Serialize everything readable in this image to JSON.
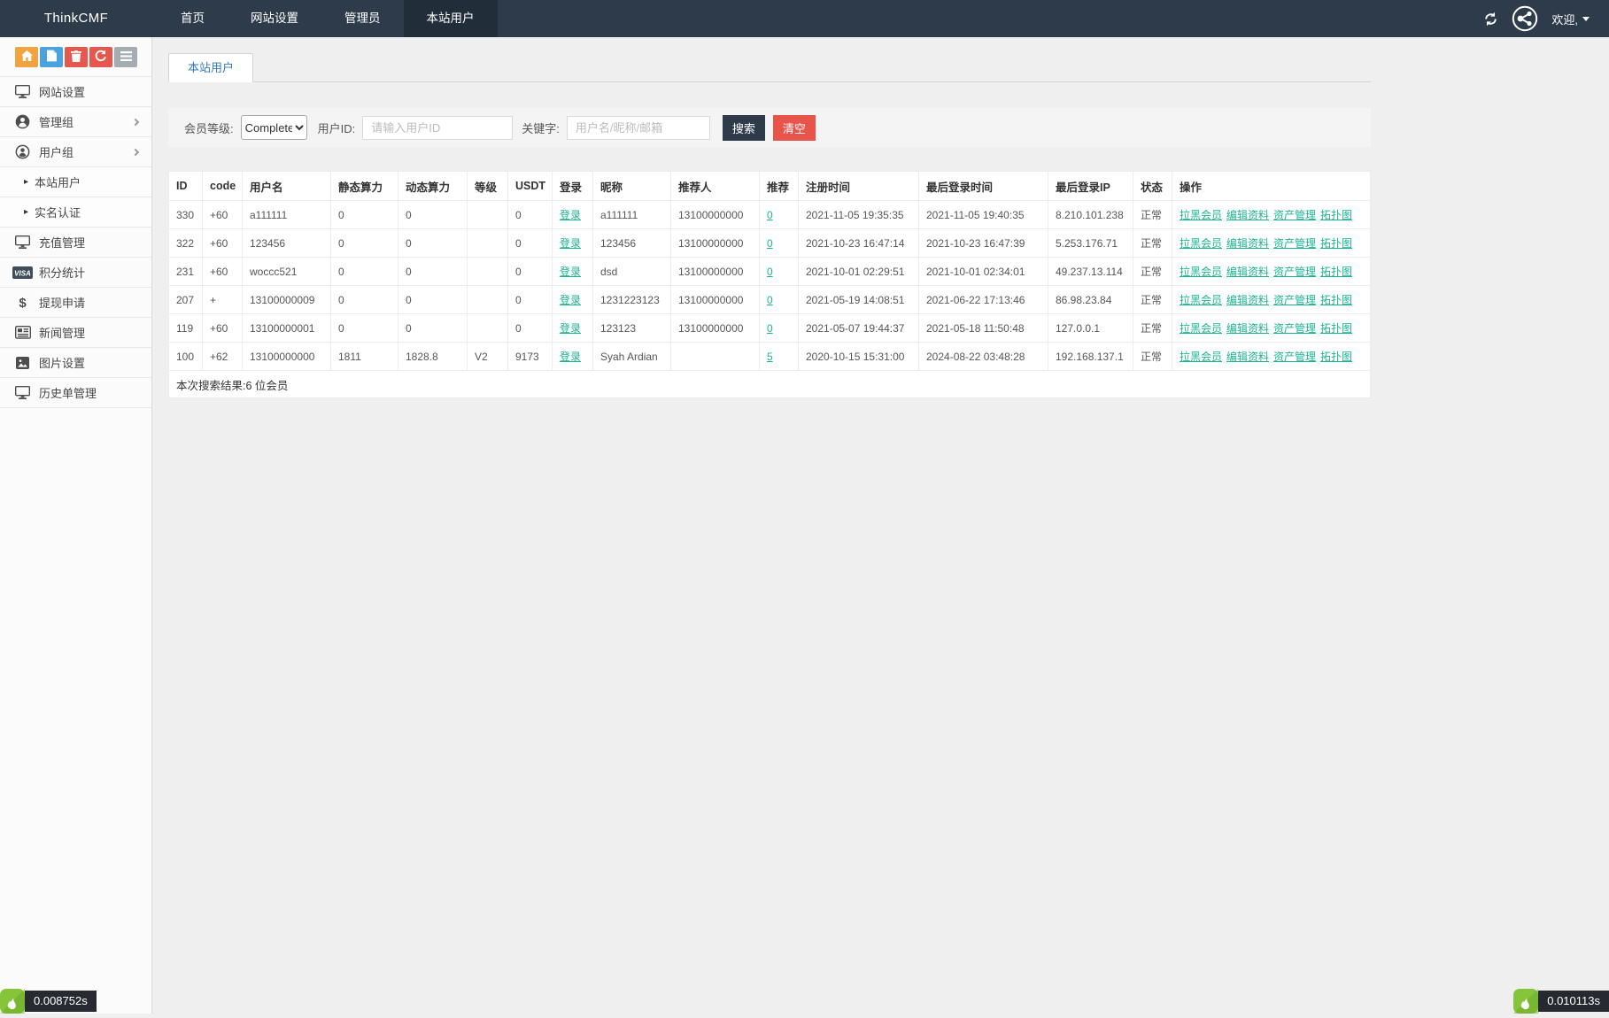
{
  "colors": {
    "navbar_bg": "#2e3b4b",
    "navbar_active_bg": "#222d3a",
    "link_green": "#1cb394",
    "danger_red": "#e8544a",
    "quick_orange": "#f0a33f",
    "quick_blue": "#4aa3df",
    "quick_gray": "#a4adb2",
    "logo_green": "#86c43a"
  },
  "navbar": {
    "brand": "ThinkCMF",
    "items": [
      {
        "key": "home",
        "label": "首页",
        "active": false
      },
      {
        "key": "site-settings",
        "label": "网站设置",
        "active": false
      },
      {
        "key": "admins",
        "label": "管理员",
        "active": false
      },
      {
        "key": "site-users",
        "label": "本站用户",
        "active": true
      }
    ],
    "welcome": "欢迎,"
  },
  "sidebar": {
    "quick_buttons": [
      {
        "key": "home",
        "icon": "home-icon",
        "color": "#f0a33f"
      },
      {
        "key": "file",
        "icon": "file-icon",
        "color": "#4aa3df"
      },
      {
        "key": "trash",
        "icon": "trash-icon",
        "color": "#e8574d"
      },
      {
        "key": "recycle",
        "icon": "recycle-icon",
        "color": "#e8574d"
      },
      {
        "key": "list",
        "icon": "list-icon",
        "color": "#a4adb2"
      }
    ],
    "menu": [
      {
        "key": "site-settings",
        "icon": "monitor-icon",
        "label": "网站设置",
        "expandable": false
      },
      {
        "key": "admin-group",
        "icon": "admin-group-icon",
        "label": "管理组",
        "expandable": true
      },
      {
        "key": "user-group",
        "icon": "user-group-icon",
        "label": "用户组",
        "expandable": true,
        "children": [
          {
            "key": "site-users",
            "label": "本站用户"
          },
          {
            "key": "realname-auth",
            "label": "实名认证"
          }
        ]
      },
      {
        "key": "recharge-manage",
        "icon": "monitor-icon",
        "label": "充值管理",
        "expandable": false
      },
      {
        "key": "points-stats",
        "icon": "visa-icon",
        "label": "积分统计",
        "expandable": false
      },
      {
        "key": "withdraw-apply",
        "icon": "dollar-icon",
        "label": "提现申请",
        "expandable": false
      },
      {
        "key": "news-manage",
        "icon": "news-icon",
        "label": "新闻管理",
        "expandable": false
      },
      {
        "key": "image-settings",
        "icon": "image-icon",
        "label": "图片设置",
        "expandable": false
      },
      {
        "key": "history-orders",
        "icon": "monitor-icon",
        "label": "历史单管理",
        "expandable": false
      }
    ]
  },
  "main": {
    "tab_label": "本站用户",
    "filter": {
      "level_label": "会员等级:",
      "level_value": "Complete",
      "userid_label": "用户ID:",
      "userid_placeholder": "请输入用户ID",
      "keyword_label": "关键字:",
      "keyword_placeholder": "用户名/昵称/邮箱",
      "search_button": "搜索",
      "clear_button": "清空"
    },
    "table": {
      "headers": [
        "ID",
        "code",
        "用户名",
        "静态算力",
        "动态算力",
        "等级",
        "USDT",
        "登录",
        "昵称",
        "推荐人",
        "推荐",
        "注册时间",
        "最后登录时间",
        "最后登录IP",
        "状态",
        "操作"
      ],
      "login_label": "登录",
      "actions": [
        "拉黑会员",
        "编辑资料",
        "资产管理",
        "拓扑图"
      ],
      "rows": [
        {
          "id": "330",
          "code": "+60",
          "username": "a111111",
          "static_power": "0",
          "dynamic_power": "0",
          "level": "",
          "usdt": "0",
          "nickname": "a111111",
          "referrer": "13100000000",
          "referrals": "0",
          "register_time": "2021-11-05 19:35:35",
          "last_login_time": "2021-11-05 19:40:35",
          "last_login_ip": "8.210.101.238",
          "status": "正常"
        },
        {
          "id": "322",
          "code": "+60",
          "username": "123456",
          "static_power": "0",
          "dynamic_power": "0",
          "level": "",
          "usdt": "0",
          "nickname": "123456",
          "referrer": "13100000000",
          "referrals": "0",
          "register_time": "2021-10-23 16:47:14",
          "last_login_time": "2021-10-23 16:47:39",
          "last_login_ip": "5.253.176.71",
          "status": "正常"
        },
        {
          "id": "231",
          "code": "+60",
          "username": "woccc521",
          "static_power": "0",
          "dynamic_power": "0",
          "level": "",
          "usdt": "0",
          "nickname": "dsd",
          "referrer": "13100000000",
          "referrals": "0",
          "register_time": "2021-10-01 02:29:51",
          "last_login_time": "2021-10-01 02:34:01",
          "last_login_ip": "49.237.13.114",
          "status": "正常"
        },
        {
          "id": "207",
          "code": "+",
          "username": "13100000009",
          "static_power": "0",
          "dynamic_power": "0",
          "level": "",
          "usdt": "0",
          "nickname": "1231223123",
          "referrer": "13100000000",
          "referrals": "0",
          "register_time": "2021-05-19 14:08:51",
          "last_login_time": "2021-06-22 17:13:46",
          "last_login_ip": "86.98.23.84",
          "status": "正常"
        },
        {
          "id": "119",
          "code": "+60",
          "username": "13100000001",
          "static_power": "0",
          "dynamic_power": "0",
          "level": "",
          "usdt": "0",
          "nickname": "123123",
          "referrer": "13100000000",
          "referrals": "0",
          "register_time": "2021-05-07 19:44:37",
          "last_login_time": "2021-05-18 11:50:48",
          "last_login_ip": "127.0.0.1",
          "status": "正常"
        },
        {
          "id": "100",
          "code": "+62",
          "username": "13100000000",
          "static_power": "1811",
          "dynamic_power": "1828.8",
          "level": "V2",
          "usdt": "9173",
          "nickname": "Syah Ardian",
          "referrer": "",
          "referrals": "5",
          "register_time": "2020-10-15 15:31:00",
          "last_login_time": "2024-08-22 03:48:28",
          "last_login_ip": "192.168.137.1",
          "status": "正常"
        }
      ],
      "summary": "本次搜索结果:6 位会员"
    }
  },
  "perf": {
    "left": "0.008752s",
    "right": "0.010113s"
  }
}
